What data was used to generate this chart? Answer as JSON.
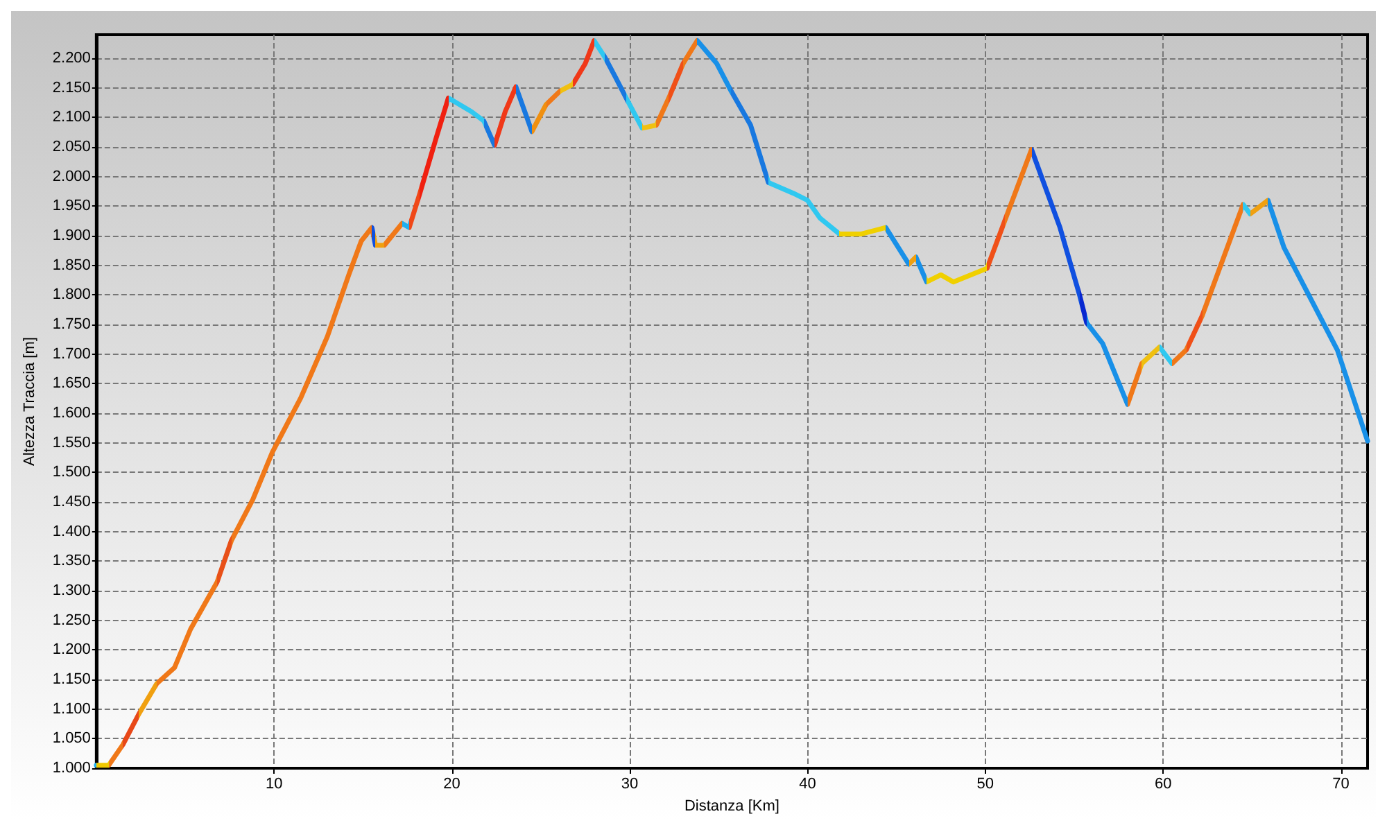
{
  "chart_data": {
    "type": "line",
    "xlabel": "Distanza [Km]",
    "ylabel": "Altezza Traccia [m]",
    "xlim": [
      0,
      71.5
    ],
    "xticks": [
      10,
      20,
      30,
      40,
      50,
      60,
      70
    ],
    "ylim": [
      1000,
      2240
    ],
    "yticks": [
      {
        "value": 1000,
        "label": "1.000"
      },
      {
        "value": 1050,
        "label": "1.050"
      },
      {
        "value": 1100,
        "label": "1.100"
      },
      {
        "value": 1150,
        "label": "1.150"
      },
      {
        "value": 1200,
        "label": "1.200"
      },
      {
        "value": 1250,
        "label": "1.250"
      },
      {
        "value": 1300,
        "label": "1.300"
      },
      {
        "value": 1350,
        "label": "1.350"
      },
      {
        "value": 1400,
        "label": "1.400"
      },
      {
        "value": 1450,
        "label": "1.450"
      },
      {
        "value": 1500,
        "label": "1.500"
      },
      {
        "value": 1550,
        "label": "1.550"
      },
      {
        "value": 1600,
        "label": "1.600"
      },
      {
        "value": 1650,
        "label": "1.650"
      },
      {
        "value": 1700,
        "label": "1.700"
      },
      {
        "value": 1750,
        "label": "1.750"
      },
      {
        "value": 1800,
        "label": "1.800"
      },
      {
        "value": 1850,
        "label": "1.850"
      },
      {
        "value": 1900,
        "label": "1.900"
      },
      {
        "value": 1950,
        "label": "1.950"
      },
      {
        "value": 2000,
        "label": "2.000"
      },
      {
        "value": 2050,
        "label": "2.050"
      },
      {
        "value": 2100,
        "label": "2.100"
      },
      {
        "value": 2150,
        "label": "2.150"
      },
      {
        "value": 2200,
        "label": "2.200"
      }
    ],
    "grid": true,
    "marker": "none",
    "line_style": "solid",
    "series": [
      {
        "x": [
          0,
          0.7,
          1.5,
          2.4,
          3.4,
          4.4,
          5.3,
          6.8,
          7.6,
          8.8,
          9.9,
          11.5,
          13,
          14.2,
          14.9,
          15.5,
          15.7,
          16.2,
          17.2,
          17.6,
          18.2,
          19.1,
          19.8,
          21.1,
          21.8,
          22.4,
          23,
          23.6,
          24.5,
          25.3,
          26.1,
          26.8,
          27.5,
          28,
          28.6,
          29.2,
          29.8,
          30.7,
          31.5,
          32.2,
          33,
          33.8,
          34.9,
          35.7,
          36.8,
          37.8,
          39.2,
          40,
          40.7,
          41.8,
          43,
          44.4,
          45.7,
          46.1,
          46.7,
          47.5,
          48.2,
          50.1,
          51.1,
          52.6,
          54.2,
          55.3,
          55.7,
          56.6,
          58,
          58.8,
          59.8,
          60.5,
          61.3,
          62.2,
          64.5,
          64.9,
          65.9,
          66.8,
          68,
          69.8,
          71.5
        ],
        "values": [
          1005,
          1005,
          1040,
          1092,
          1143,
          1170,
          1235,
          1315,
          1385,
          1454,
          1534,
          1626,
          1730,
          1834,
          1891,
          1914,
          1884,
          1884,
          1921,
          1914,
          1972,
          2064,
          2133,
          2110,
          2094,
          2053,
          2110,
          2152,
          2076,
          2122,
          2145,
          2156,
          2191,
          2230,
          2202,
          2168,
          2133,
          2082,
          2087,
          2133,
          2191,
          2230,
          2191,
          2145,
          2087,
          1990,
          1972,
          1960,
          1930,
          1903,
          1903,
          1914,
          1852,
          1864,
          1822,
          1834,
          1822,
          1845,
          1926,
          2046,
          1914,
          1800,
          1753,
          1718,
          1615,
          1684,
          1712,
          1684,
          1707,
          1765,
          1953,
          1937,
          1960,
          1880,
          1811,
          1707,
          1553
        ],
        "colors": [
          "#20b0f0",
          "#f0c800",
          "#f07818",
          "#e84818",
          "#f0a010",
          "#f07818",
          "#f07818",
          "#f07818",
          "#e85018",
          "#f07818",
          "#f07818",
          "#f07818",
          "#f07818",
          "#f07818",
          "#f07818",
          "#f07818",
          "#1050e0",
          "#f0a010",
          "#f07818",
          "#20b0f0",
          "#f04818",
          "#f02010",
          "#f02010",
          "#30c8f0",
          "#30c8f0",
          "#1878e0",
          "#f03818",
          "#f03818",
          "#1878e0",
          "#f09010",
          "#f07818",
          "#f0c010",
          "#f03818",
          "#f03818",
          "#30c8f0",
          "#1878e0",
          "#1878e0",
          "#30c8f0",
          "#f0c010",
          "#f07818",
          "#f05018",
          "#f07818",
          "#1890e8",
          "#1890e8",
          "#1878e0",
          "#1878e0",
          "#30c8f0",
          "#30c8f0",
          "#30c8f0",
          "#30c8f0",
          "#f0d000",
          "#f0d000",
          "#1890e8",
          "#f0a010",
          "#1890e8",
          "#f0d000",
          "#f0d000",
          "#f0d000",
          "#f05018",
          "#f07818",
          "#1050e0",
          "#1050e0",
          "#0828d0",
          "#1890e8",
          "#1890e8",
          "#f07818",
          "#f0c010",
          "#30c8f0",
          "#f07818",
          "#f05018",
          "#f07818",
          "#30c8f0",
          "#f0a010",
          "#1890e8",
          "#1890e8",
          "#1890e8",
          "#1890e8"
        ]
      }
    ]
  }
}
